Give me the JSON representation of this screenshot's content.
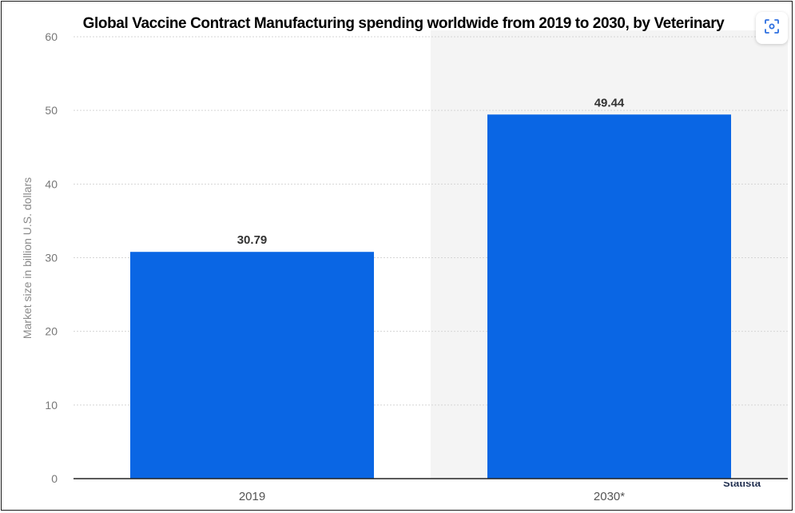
{
  "chart_data": {
    "type": "bar",
    "title": "Global Vaccine Contract Manufacturing spending worldwide from 2019 to 2030, by Veterinary",
    "xlabel": "",
    "ylabel": "Market size in billion U.S. dollars",
    "categories": [
      "2019",
      "2030*"
    ],
    "values": [
      30.79,
      49.44
    ],
    "value_labels": [
      "30.79",
      "49.44"
    ],
    "ylim": [
      0,
      60
    ],
    "yticks": [
      "0",
      "10",
      "20",
      "30",
      "40",
      "50",
      "60"
    ],
    "grid": true,
    "legend": "none",
    "highlight": "shaded background behind forecast (2030*) column",
    "bar_color": "#0a66e4"
  },
  "colors": {
    "bar": "#0a66e4",
    "grid": "#d5d5d5",
    "axis": "#222222",
    "tick_text": "#777777",
    "value_text": "#333333",
    "forecast_bg": "#f4f4f4"
  },
  "toolbar": {
    "screenshot_icon": "screenshot-icon"
  },
  "footer": {
    "clipped_text": "Statista"
  }
}
